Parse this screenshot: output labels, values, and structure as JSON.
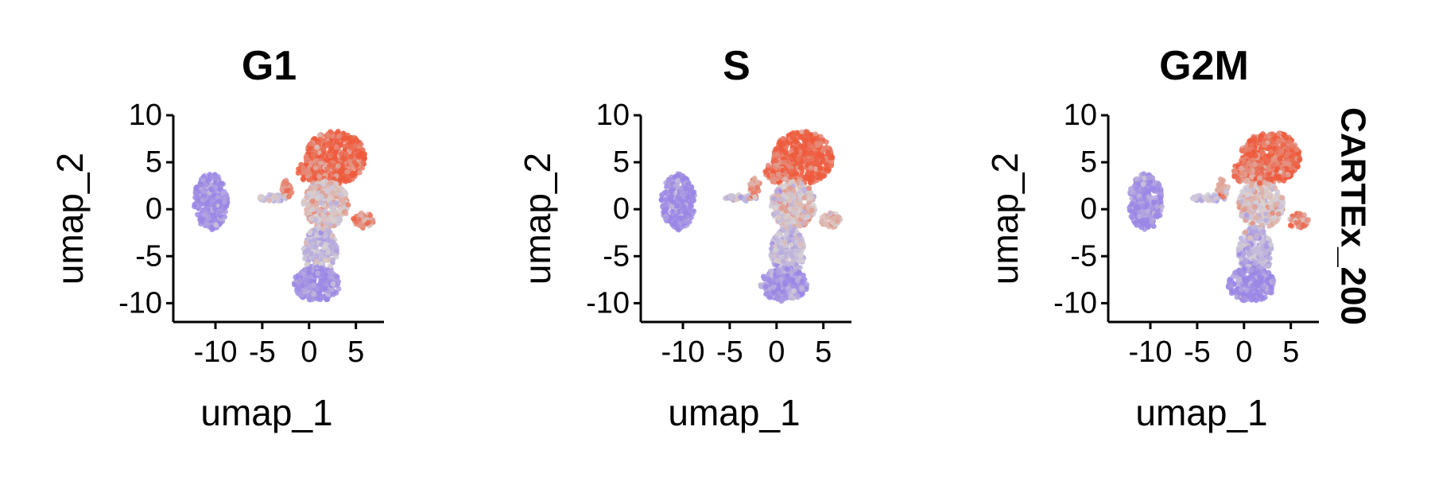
{
  "strip_label": "CARTEx_200",
  "colors": {
    "low": "#9a86e6",
    "mid": "#d8d4d4",
    "high": "#ee5a3c"
  },
  "chart_data": [
    {
      "type": "scatter",
      "title": "G1",
      "xlabel": "umap_1",
      "ylabel": "umap_2",
      "xlim": [
        -14.5,
        8
      ],
      "ylim": [
        -12,
        10
      ],
      "xticks": [
        -10,
        -5,
        0,
        5
      ],
      "yticks": [
        -10,
        -5,
        0,
        5,
        10
      ],
      "xtick_labels": [
        "-10",
        "-5",
        "0",
        "5"
      ],
      "ytick_labels": [
        "-10",
        "-5",
        "0",
        "5",
        "10"
      ],
      "color_by": "score",
      "clusters": [
        {
          "name": "left",
          "cx": -10.5,
          "cy": 0.8,
          "rx": 1.8,
          "ry": 3.0,
          "score": -0.95
        },
        {
          "name": "arm",
          "cx": -3.8,
          "cy": 1.2,
          "rx": 1.8,
          "ry": 0.35,
          "score": -0.3
        },
        {
          "name": "arm-tip",
          "cx": -2.3,
          "cy": 2.3,
          "rx": 0.6,
          "ry": 1.0,
          "score": 0.45
        },
        {
          "name": "top-lobe",
          "cx": 2.8,
          "cy": 5.5,
          "rx": 3.2,
          "ry": 2.8,
          "score": 0.9
        },
        {
          "name": "upper-left-lobe",
          "cx": 0.4,
          "cy": 4.0,
          "rx": 1.6,
          "ry": 1.3,
          "score": 0.75
        },
        {
          "name": "mid-body",
          "cx": 1.8,
          "cy": 0.5,
          "rx": 2.4,
          "ry": 2.5,
          "score": 0.1
        },
        {
          "name": "right-spur",
          "cx": 5.8,
          "cy": -1.2,
          "rx": 1.1,
          "ry": 0.8,
          "score": 0.55
        },
        {
          "name": "lower-body",
          "cx": 1.2,
          "cy": -4.5,
          "rx": 1.8,
          "ry": 2.6,
          "score": -0.4
        },
        {
          "name": "bottom-lobe",
          "cx": 0.8,
          "cy": -8.0,
          "rx": 2.5,
          "ry": 1.8,
          "score": -0.85
        }
      ]
    },
    {
      "type": "scatter",
      "title": "S",
      "xlabel": "umap_1",
      "ylabel": "umap_2",
      "xlim": [
        -14.5,
        8
      ],
      "ylim": [
        -12,
        10
      ],
      "xticks": [
        -10,
        -5,
        0,
        5
      ],
      "yticks": [
        -10,
        -5,
        0,
        5,
        10
      ],
      "xtick_labels": [
        "-10",
        "-5",
        "0",
        "5"
      ],
      "ytick_labels": [
        "-10",
        "-5",
        "0",
        "5",
        "10"
      ],
      "color_by": "score",
      "clusters": [
        {
          "name": "left",
          "cx": -10.5,
          "cy": 0.8,
          "rx": 1.8,
          "ry": 3.0,
          "score": -0.9
        },
        {
          "name": "arm",
          "cx": -3.8,
          "cy": 1.2,
          "rx": 1.8,
          "ry": 0.35,
          "score": -0.25
        },
        {
          "name": "arm-tip",
          "cx": -2.3,
          "cy": 2.3,
          "rx": 0.6,
          "ry": 1.0,
          "score": 0.5
        },
        {
          "name": "top-lobe",
          "cx": 2.8,
          "cy": 5.5,
          "rx": 3.2,
          "ry": 2.8,
          "score": 0.95
        },
        {
          "name": "upper-left-lobe",
          "cx": 0.4,
          "cy": 4.0,
          "rx": 1.6,
          "ry": 1.3,
          "score": 0.8
        },
        {
          "name": "mid-body",
          "cx": 1.8,
          "cy": 0.5,
          "rx": 2.4,
          "ry": 2.5,
          "score": 0.05
        },
        {
          "name": "right-spur",
          "cx": 5.8,
          "cy": -1.2,
          "rx": 1.1,
          "ry": 0.8,
          "score": 0.25
        },
        {
          "name": "lower-body",
          "cx": 1.2,
          "cy": -4.5,
          "rx": 1.8,
          "ry": 2.6,
          "score": -0.35
        },
        {
          "name": "bottom-lobe",
          "cx": 0.8,
          "cy": -8.0,
          "rx": 2.5,
          "ry": 1.8,
          "score": -0.8
        }
      ]
    },
    {
      "type": "scatter",
      "title": "G2M",
      "xlabel": "umap_1",
      "ylabel": "umap_2",
      "xlim": [
        -14.5,
        8
      ],
      "ylim": [
        -12,
        10
      ],
      "xticks": [
        -10,
        -5,
        0,
        5
      ],
      "yticks": [
        -10,
        -5,
        0,
        5,
        10
      ],
      "xtick_labels": [
        "-10",
        "-5",
        "0",
        "5"
      ],
      "ytick_labels": [
        "-10",
        "-5",
        "0",
        "5",
        "10"
      ],
      "color_by": "score",
      "clusters": [
        {
          "name": "left",
          "cx": -10.5,
          "cy": 0.8,
          "rx": 1.8,
          "ry": 3.0,
          "score": -0.92
        },
        {
          "name": "arm",
          "cx": -3.8,
          "cy": 1.2,
          "rx": 1.8,
          "ry": 0.35,
          "score": -0.4
        },
        {
          "name": "arm-tip",
          "cx": -2.3,
          "cy": 2.3,
          "rx": 0.6,
          "ry": 1.0,
          "score": 0.35
        },
        {
          "name": "top-lobe",
          "cx": 2.8,
          "cy": 5.5,
          "rx": 3.2,
          "ry": 2.8,
          "score": 0.85
        },
        {
          "name": "upper-left-lobe",
          "cx": 0.4,
          "cy": 4.0,
          "rx": 1.6,
          "ry": 1.3,
          "score": 0.7
        },
        {
          "name": "mid-body",
          "cx": 1.8,
          "cy": 0.5,
          "rx": 2.4,
          "ry": 2.5,
          "score": 0.05
        },
        {
          "name": "right-spur",
          "cx": 5.8,
          "cy": -1.2,
          "rx": 1.1,
          "ry": 0.8,
          "score": 0.6
        },
        {
          "name": "lower-body",
          "cx": 1.2,
          "cy": -4.5,
          "rx": 1.8,
          "ry": 2.6,
          "score": -0.45
        },
        {
          "name": "bottom-lobe",
          "cx": 0.8,
          "cy": -8.0,
          "rx": 2.5,
          "ry": 1.8,
          "score": -0.88
        }
      ]
    }
  ]
}
